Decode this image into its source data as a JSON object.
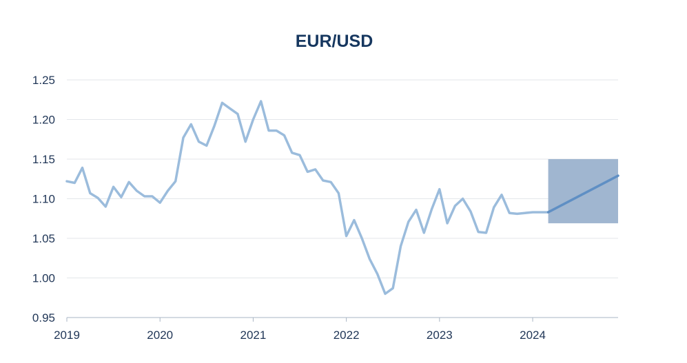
{
  "chart_data": {
    "type": "line",
    "title": "EUR/USD",
    "xlabel": "",
    "ylabel": "",
    "ylim": [
      0.95,
      1.25
    ],
    "xlim": [
      "2019-01",
      "2024-12"
    ],
    "grid": true,
    "y_ticks": [
      "0.95",
      "1.00",
      "1.05",
      "1.10",
      "1.15",
      "1.20",
      "1.25"
    ],
    "x_ticks": [
      {
        "label": "2019",
        "x": "2019-01"
      },
      {
        "label": "2020",
        "x": "2020-01"
      },
      {
        "label": "2021",
        "x": "2021-01"
      },
      {
        "label": "2022",
        "x": "2022-01"
      },
      {
        "label": "2023",
        "x": "2023-01"
      },
      {
        "label": "2024",
        "x": "2024-01"
      }
    ],
    "series": [
      {
        "name": "",
        "color": "#9bbcdc",
        "points": [
          [
            "2019-01",
            1.122
          ],
          [
            "2019-02",
            1.12
          ],
          [
            "2019-03",
            1.139
          ],
          [
            "2019-04",
            1.107
          ],
          [
            "2019-05",
            1.101
          ],
          [
            "2019-06",
            1.09
          ],
          [
            "2019-07",
            1.115
          ],
          [
            "2019-08",
            1.102
          ],
          [
            "2019-09",
            1.121
          ],
          [
            "2019-10",
            1.11
          ],
          [
            "2019-11",
            1.103
          ],
          [
            "2019-12",
            1.103
          ],
          [
            "2020-01",
            1.095
          ],
          [
            "2020-02",
            1.11
          ],
          [
            "2020-03",
            1.122
          ],
          [
            "2020-04",
            1.177
          ],
          [
            "2020-05",
            1.194
          ],
          [
            "2020-06",
            1.172
          ],
          [
            "2020-07",
            1.167
          ],
          [
            "2020-08",
            1.192
          ],
          [
            "2020-09",
            1.221
          ],
          [
            "2020-10",
            1.214
          ],
          [
            "2020-11",
            1.207
          ],
          [
            "2020-12",
            1.172
          ],
          [
            "2021-01",
            1.2
          ],
          [
            "2021-02",
            1.223
          ],
          [
            "2021-03",
            1.186
          ],
          [
            "2021-04",
            1.186
          ],
          [
            "2021-05",
            1.18
          ],
          [
            "2021-06",
            1.158
          ],
          [
            "2021-07",
            1.155
          ],
          [
            "2021-08",
            1.134
          ],
          [
            "2021-09",
            1.137
          ],
          [
            "2021-10",
            1.123
          ],
          [
            "2021-11",
            1.121
          ],
          [
            "2021-12",
            1.107
          ],
          [
            "2022-01",
            1.053
          ],
          [
            "2022-02",
            1.073
          ],
          [
            "2022-03",
            1.05
          ],
          [
            "2022-04",
            1.024
          ],
          [
            "2022-05",
            1.005
          ],
          [
            "2022-06",
            0.98
          ],
          [
            "2022-07",
            0.987
          ],
          [
            "2022-08",
            1.04
          ],
          [
            "2022-09",
            1.071
          ],
          [
            "2022-10",
            1.086
          ],
          [
            "2022-11",
            1.057
          ],
          [
            "2022-12",
            1.087
          ],
          [
            "2023-01",
            1.112
          ],
          [
            "2023-02",
            1.069
          ],
          [
            "2023-03",
            1.091
          ],
          [
            "2023-04",
            1.1
          ],
          [
            "2023-05",
            1.084
          ],
          [
            "2023-06",
            1.058
          ],
          [
            "2023-07",
            1.057
          ],
          [
            "2023-08",
            1.089
          ],
          [
            "2023-09",
            1.105
          ],
          [
            "2023-10",
            1.082
          ],
          [
            "2023-11",
            1.081
          ],
          [
            "2023-12",
            1.082
          ],
          [
            "2024-01",
            1.083
          ],
          [
            "2024-02",
            1.083
          ],
          [
            "2024-03",
            1.083
          ]
        ]
      },
      {
        "name": "",
        "color": "#5f8fc4",
        "points": [
          [
            "2024-03",
            1.083
          ],
          [
            "2024-12",
            1.129
          ]
        ]
      }
    ],
    "bands": [
      {
        "x_start": "2024-03",
        "x_end": "2024-12",
        "y_low": 1.069,
        "y_high": 1.15,
        "color": "#a0b6d0"
      }
    ]
  }
}
